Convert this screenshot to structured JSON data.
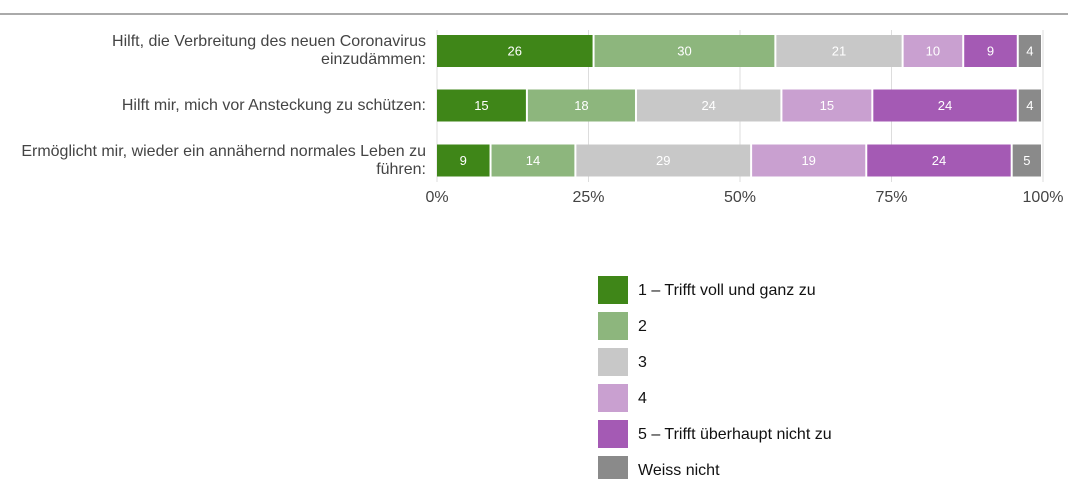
{
  "chart_data": {
    "type": "stacked_bar_horizontal",
    "categories": [
      "Hilft, die Verbreitung des neuen Coronavirus einzudämmen:",
      "Hilft mir, mich vor Ansteckung zu schützen:",
      "Ermöglicht mir, wieder ein annähernd normales Leben zu führen:"
    ],
    "series": [
      {
        "name": "1 – Trifft voll und ganz zu",
        "color": "#3f8618",
        "values": [
          26,
          15,
          9
        ]
      },
      {
        "name": "2",
        "color": "#8db67d",
        "values": [
          30,
          18,
          14
        ]
      },
      {
        "name": "3",
        "color": "#c8c8c8",
        "values": [
          21,
          24,
          29
        ]
      },
      {
        "name": "4",
        "color": "#c9a0d0",
        "values": [
          10,
          15,
          19
        ]
      },
      {
        "name": "5 – Trifft überhaupt nicht zu",
        "color": "#a45ab4",
        "values": [
          9,
          24,
          24
        ]
      },
      {
        "name": "Weiss nicht",
        "color": "#8a8a8a",
        "values": [
          4,
          4,
          5
        ]
      }
    ],
    "xlim": [
      0,
      100
    ],
    "xticks": [
      {
        "value": 0,
        "label": "0%"
      },
      {
        "value": 25,
        "label": "25%"
      },
      {
        "value": 50,
        "label": "50%"
      },
      {
        "value": 75,
        "label": "75%"
      },
      {
        "value": 100,
        "label": "100%"
      }
    ],
    "grid": true
  }
}
